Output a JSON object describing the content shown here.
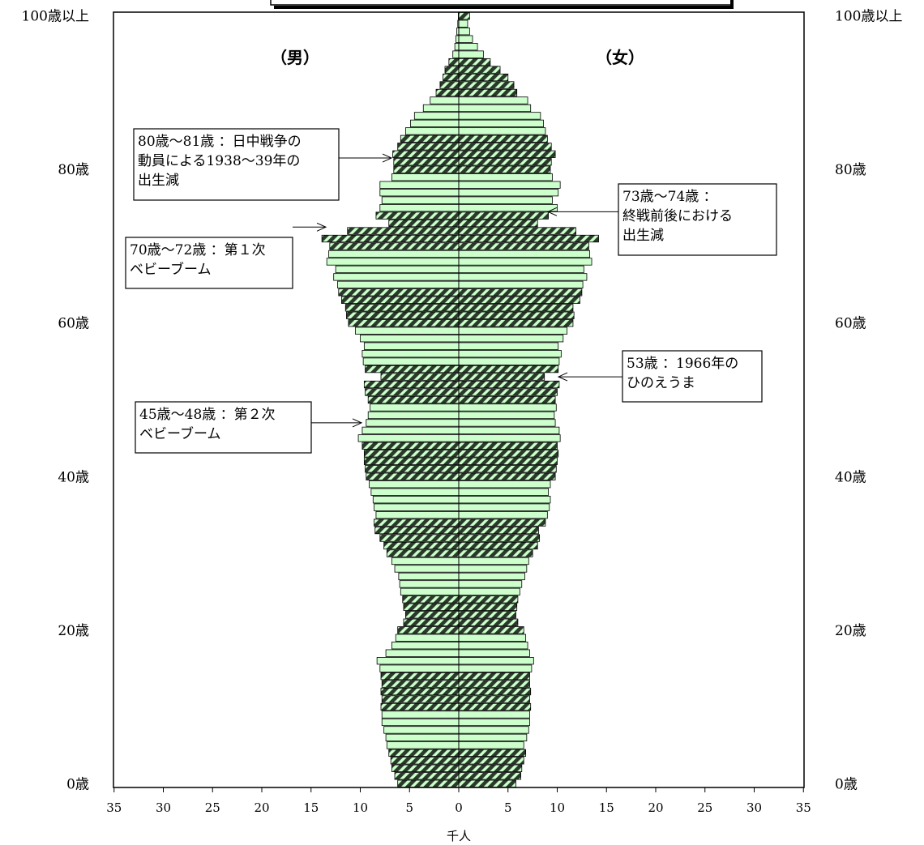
{
  "chart_data": {
    "type": "bar",
    "orientation": "horizontal",
    "subtype": "population-pyramid",
    "xlabel": "千人",
    "x_ticks_left": [
      "35",
      "30",
      "25",
      "20",
      "15",
      "10",
      "5",
      "0"
    ],
    "x_ticks_right": [
      "5",
      "10",
      "15",
      "20",
      "25",
      "30",
      "35"
    ],
    "left_tick_color": "#ff0000",
    "xlim": [
      -35,
      35
    ],
    "y_ticks": [
      {
        "age": 0,
        "label": "0歳"
      },
      {
        "age": 20,
        "label": "20歳"
      },
      {
        "age": 40,
        "label": "40歳"
      },
      {
        "age": 60,
        "label": "60歳"
      },
      {
        "age": 80,
        "label": "80歳"
      },
      {
        "age": 100,
        "label": "100歳以上"
      }
    ],
    "ages": [
      0,
      1,
      2,
      3,
      4,
      5,
      6,
      7,
      8,
      9,
      10,
      11,
      12,
      13,
      14,
      15,
      16,
      17,
      18,
      19,
      20,
      21,
      22,
      23,
      24,
      25,
      26,
      27,
      28,
      29,
      30,
      31,
      32,
      33,
      34,
      35,
      36,
      37,
      38,
      39,
      40,
      41,
      42,
      43,
      44,
      45,
      46,
      47,
      48,
      49,
      50,
      51,
      52,
      53,
      54,
      55,
      56,
      57,
      58,
      59,
      60,
      61,
      62,
      63,
      64,
      65,
      66,
      67,
      68,
      69,
      70,
      71,
      72,
      73,
      74,
      75,
      76,
      77,
      78,
      79,
      80,
      81,
      82,
      83,
      84,
      85,
      86,
      87,
      88,
      89,
      90,
      91,
      92,
      93,
      94,
      95,
      96,
      97,
      98,
      99,
      100
    ],
    "series": [
      {
        "name": "（男）",
        "side": "left",
        "values": [
          6.2,
          6.5,
          6.8,
          6.9,
          7.1,
          7.3,
          7.4,
          7.6,
          7.8,
          7.8,
          7.9,
          7.8,
          7.9,
          7.8,
          7.9,
          8.0,
          8.3,
          7.4,
          6.8,
          6.4,
          6.2,
          5.6,
          5.4,
          5.6,
          5.7,
          5.9,
          6.0,
          6.1,
          6.5,
          6.8,
          7.3,
          7.6,
          8.0,
          8.5,
          8.6,
          8.4,
          8.6,
          8.7,
          8.9,
          9.1,
          9.4,
          9.5,
          9.6,
          9.6,
          9.8,
          10.2,
          9.8,
          9.4,
          9.2,
          9.0,
          9.2,
          9.5,
          9.6,
          7.9,
          9.5,
          9.7,
          9.8,
          9.6,
          10.0,
          10.5,
          11.2,
          11.4,
          11.5,
          11.9,
          12.2,
          12.3,
          12.7,
          12.5,
          13.4,
          13.2,
          13.1,
          13.9,
          11.3,
          7.1,
          8.4,
          8.0,
          7.8,
          8.0,
          8.0,
          6.8,
          6.6,
          6.6,
          6.7,
          6.2,
          5.9,
          5.4,
          4.9,
          4.5,
          3.6,
          2.9,
          2.3,
          1.9,
          1.6,
          1.4,
          1.0,
          0.6,
          0.4,
          0.3,
          0.2,
          0.1,
          0.05
        ]
      },
      {
        "name": "（女）",
        "side": "right",
        "values": [
          5.8,
          6.3,
          6.4,
          6.6,
          6.8,
          6.6,
          6.9,
          7.1,
          7.2,
          7.2,
          7.3,
          7.2,
          7.3,
          7.2,
          7.2,
          7.4,
          7.6,
          7.2,
          7.0,
          6.8,
          6.6,
          6.0,
          5.8,
          5.9,
          6.0,
          6.2,
          6.4,
          6.7,
          6.9,
          7.1,
          7.5,
          8.0,
          8.2,
          8.1,
          8.8,
          9.0,
          9.2,
          9.3,
          9.1,
          9.3,
          9.8,
          9.9,
          10.0,
          10.1,
          10.0,
          10.3,
          10.2,
          9.8,
          9.7,
          9.9,
          9.8,
          10.0,
          10.2,
          8.7,
          10.1,
          10.2,
          10.4,
          10.1,
          10.6,
          11.0,
          11.6,
          11.7,
          11.6,
          12.3,
          12.5,
          12.6,
          13.0,
          12.7,
          13.5,
          13.3,
          13.2,
          14.2,
          11.9,
          8.0,
          9.1,
          10.0,
          9.5,
          10.1,
          10.3,
          9.5,
          9.3,
          9.4,
          9.8,
          9.4,
          9.0,
          8.8,
          8.6,
          8.3,
          7.3,
          7.0,
          5.9,
          5.6,
          5.0,
          4.2,
          3.2,
          2.5,
          1.9,
          1.4,
          1.1,
          0.9,
          1.1
        ]
      }
    ],
    "highlight_groups": [
      [
        0,
        4
      ],
      [
        10,
        14
      ],
      [
        20,
        24
      ],
      [
        30,
        34
      ],
      [
        40,
        44
      ],
      [
        50,
        54
      ],
      [
        60,
        64
      ],
      [
        70,
        74
      ],
      [
        80,
        84
      ],
      [
        90,
        94
      ],
      [
        100,
        100
      ]
    ],
    "colors": {
      "plain_bar": "#ccffcc",
      "hatch_light": "#ccffcc",
      "hatch_dark": "#2a3a2a",
      "bar_stroke": "#000000"
    },
    "labels": {
      "male": "（男）",
      "female": "（女）"
    },
    "annotations": [
      {
        "id": "ann-80-81",
        "side": "left",
        "target_age": 81.5,
        "lines": [
          "80歳～81歳 ：日中戦争の",
          "動員による1938～39年の",
          "出生減"
        ]
      },
      {
        "id": "ann-73-74",
        "side": "right",
        "target_age": 74.5,
        "lines": [
          "73歳～74歳 ：",
          "終戦前後における",
          "出生減"
        ]
      },
      {
        "id": "ann-70-72",
        "side": "left",
        "target_age": 72.5,
        "lines": [
          "70歳～72歳 ：第１次",
          "ベビーブーム"
        ]
      },
      {
        "id": "ann-53",
        "side": "right",
        "target_age": 53,
        "lines": [
          "53歳 ：1966年の",
          "ひのえうま"
        ]
      },
      {
        "id": "ann-45-48",
        "side": "left",
        "target_age": 47,
        "lines": [
          "45歳～48歳 ：第２次",
          "ベビーブーム"
        ]
      }
    ]
  }
}
